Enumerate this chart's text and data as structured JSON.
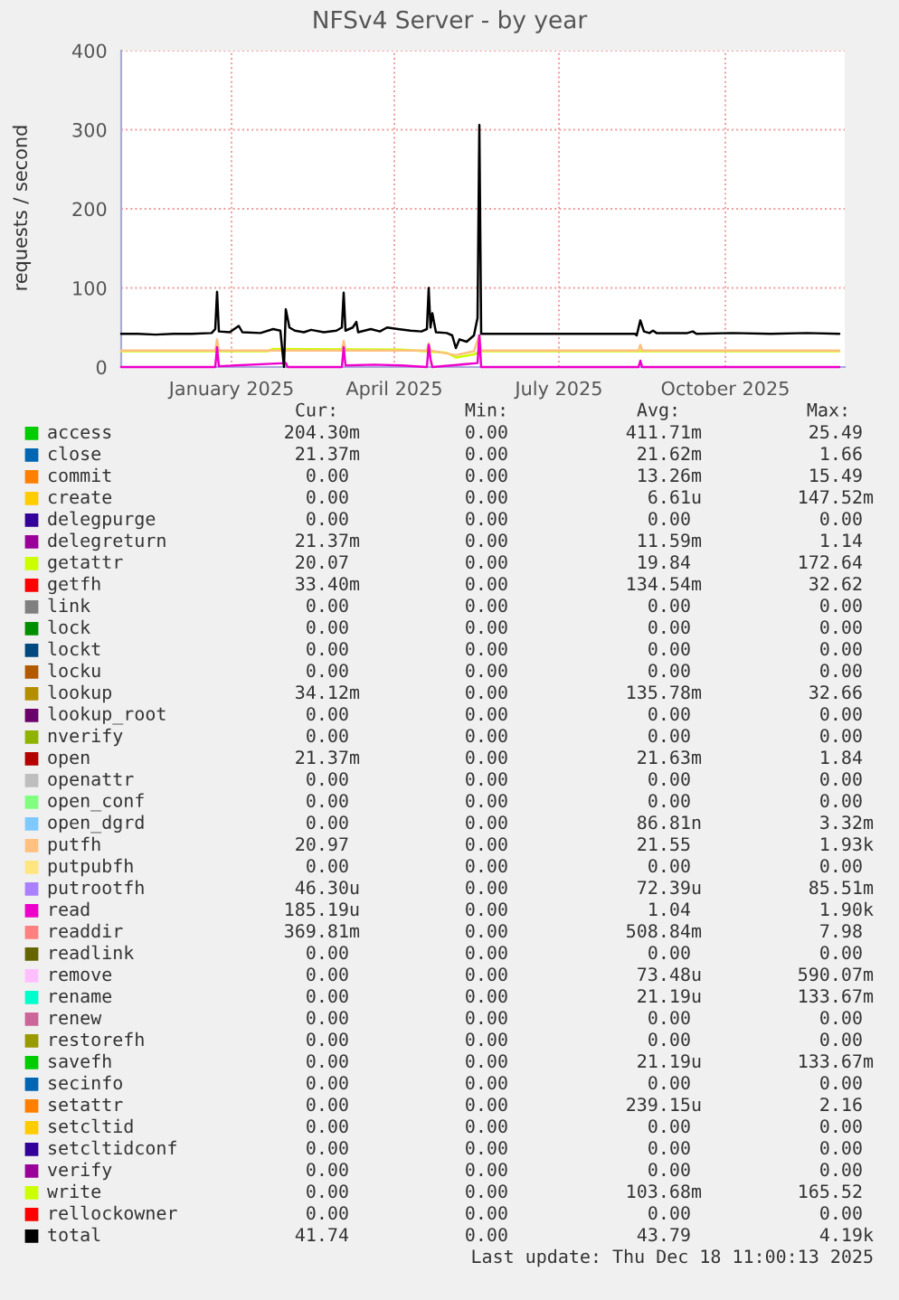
{
  "chart_data": {
    "type": "line",
    "title": "NFSv4 Server - by year",
    "ylabel": "requests / second",
    "xlim": [
      "2024-11-16",
      "2025-12-21"
    ],
    "xticks": [
      {
        "value": "2025-01-16",
        "label": "January 2025"
      },
      {
        "value": "2025-04-16",
        "label": "April 2025"
      },
      {
        "value": "2025-07-16",
        "label": "July 2025"
      },
      {
        "value": "2025-10-16",
        "label": "October 2025"
      }
    ],
    "ylim": [
      0,
      400
    ],
    "yticks": [
      0,
      100,
      200,
      300,
      400
    ],
    "grid": true,
    "legend": "bottom",
    "series": [
      {
        "name": "access",
        "color": "#00cc00"
      },
      {
        "name": "close",
        "color": "#0066b3"
      },
      {
        "name": "commit",
        "color": "#ff8000"
      },
      {
        "name": "create",
        "color": "#ffcc00"
      },
      {
        "name": "delegpurge",
        "color": "#330099"
      },
      {
        "name": "delegreturn",
        "color": "#990099"
      },
      {
        "name": "getattr",
        "color": "#ccff00",
        "x": [
          "2024-11-16",
          "2025-02-05",
          "2025-02-08",
          "2025-04-20",
          "2025-05-15",
          "2025-05-20",
          "2025-05-30",
          "2025-06-03",
          "2025-12-18"
        ],
        "values": [
          20,
          20,
          23,
          22,
          18,
          12,
          16,
          20,
          20
        ]
      },
      {
        "name": "getfh",
        "color": "#ff0000"
      },
      {
        "name": "link",
        "color": "#808080"
      },
      {
        "name": "lock",
        "color": "#008f00"
      },
      {
        "name": "lockt",
        "color": "#00487d"
      },
      {
        "name": "locku",
        "color": "#b35a00"
      },
      {
        "name": "lookup",
        "color": "#b38f00"
      },
      {
        "name": "lookup_root",
        "color": "#6b006b"
      },
      {
        "name": "nverify",
        "color": "#8fb300"
      },
      {
        "name": "open",
        "color": "#b30000"
      },
      {
        "name": "openattr",
        "color": "#bebebe"
      },
      {
        "name": "open_conf",
        "color": "#80ff80"
      },
      {
        "name": "open_dgrd",
        "color": "#80c9ff"
      },
      {
        "name": "putfh",
        "color": "#ffc080",
        "x": [
          "2024-11-16",
          "2025-01-07",
          "2025-01-08",
          "2025-01-09",
          "2025-03-18",
          "2025-03-19",
          "2025-03-20",
          "2025-05-04",
          "2025-05-05",
          "2025-05-06",
          "2025-05-20",
          "2025-05-30",
          "2025-06-02",
          "2025-06-03",
          "2025-08-29",
          "2025-08-30",
          "2025-08-31",
          "2025-12-18"
        ],
        "values": [
          21,
          21,
          35,
          21,
          21,
          33,
          21,
          21,
          30,
          21,
          15,
          20,
          40,
          21,
          21,
          28,
          21,
          21
        ]
      },
      {
        "name": "putpubfh",
        "color": "#ffe680"
      },
      {
        "name": "putrootfh",
        "color": "#aa80ff"
      },
      {
        "name": "read",
        "color": "#ee00cc",
        "x": [
          "2024-11-16",
          "2025-01-07",
          "2025-01-08",
          "2025-01-09",
          "2025-02-15",
          "2025-02-16",
          "2025-03-18",
          "2025-03-19",
          "2025-03-20",
          "2025-04-05",
          "2025-04-20",
          "2025-05-04",
          "2025-05-05",
          "2025-05-06",
          "2025-05-07",
          "2025-06-01",
          "2025-06-02",
          "2025-06-03",
          "2025-08-29",
          "2025-08-30",
          "2025-08-31",
          "2025-12-18"
        ],
        "values": [
          0,
          0,
          25,
          1,
          5,
          0,
          0,
          25,
          2,
          3,
          2,
          0,
          28,
          10,
          0,
          5,
          40,
          0,
          0,
          8,
          0,
          0
        ]
      },
      {
        "name": "readdir",
        "color": "#ff8080"
      },
      {
        "name": "readlink",
        "color": "#666600"
      },
      {
        "name": "remove",
        "color": "#ffbfff"
      },
      {
        "name": "rename",
        "color": "#00ffcc"
      },
      {
        "name": "renew",
        "color": "#cc6699"
      },
      {
        "name": "restorefh",
        "color": "#999900"
      },
      {
        "name": "savefh",
        "color": "#00cc00"
      },
      {
        "name": "secinfo",
        "color": "#0066b3"
      },
      {
        "name": "setattr",
        "color": "#ff8000"
      },
      {
        "name": "setcltid",
        "color": "#ffcc00"
      },
      {
        "name": "setcltidconf",
        "color": "#330099"
      },
      {
        "name": "verify",
        "color": "#990099"
      },
      {
        "name": "write",
        "color": "#ccff00"
      },
      {
        "name": "rellockowner",
        "color": "#ff0000"
      },
      {
        "name": "total",
        "color": "#000000",
        "x": [
          "2024-11-16",
          "2024-11-25",
          "2024-12-05",
          "2024-12-15",
          "2024-12-25",
          "2025-01-05",
          "2025-01-07",
          "2025-01-08",
          "2025-01-09",
          "2025-01-15",
          "2025-01-20",
          "2025-01-22",
          "2025-02-01",
          "2025-02-08",
          "2025-02-12",
          "2025-02-14",
          "2025-02-15",
          "2025-02-17",
          "2025-02-20",
          "2025-02-25",
          "2025-03-01",
          "2025-03-08",
          "2025-03-15",
          "2025-03-18",
          "2025-03-19",
          "2025-03-20",
          "2025-03-24",
          "2025-03-26",
          "2025-03-27",
          "2025-04-03",
          "2025-04-08",
          "2025-04-12",
          "2025-04-18",
          "2025-04-25",
          "2025-05-01",
          "2025-05-04",
          "2025-05-05",
          "2025-05-06",
          "2025-05-07",
          "2025-05-09",
          "2025-05-15",
          "2025-05-18",
          "2025-05-20",
          "2025-05-22",
          "2025-05-26",
          "2025-05-30",
          "2025-06-01",
          "2025-06-02",
          "2025-06-03",
          "2025-06-15",
          "2025-07-15",
          "2025-08-15",
          "2025-08-27",
          "2025-08-28",
          "2025-08-30",
          "2025-09-01",
          "2025-09-04",
          "2025-09-06",
          "2025-09-08",
          "2025-09-25",
          "2025-09-28",
          "2025-09-30",
          "2025-10-20",
          "2025-11-10",
          "2025-11-30",
          "2025-12-18"
        ],
        "values": [
          42,
          42,
          41,
          42,
          42,
          43,
          48,
          95,
          45,
          44,
          52,
          44,
          43,
          48,
          46,
          0,
          73,
          50,
          46,
          44,
          47,
          44,
          46,
          50,
          94,
          46,
          50,
          57,
          44,
          48,
          45,
          50,
          48,
          46,
          45,
          48,
          100,
          50,
          68,
          44,
          43,
          40,
          24,
          35,
          32,
          40,
          62,
          306,
          42,
          42,
          42,
          42,
          42,
          40,
          59,
          45,
          43,
          46,
          43,
          43,
          45,
          42,
          43,
          42,
          43,
          42
        ]
      }
    ],
    "annotations": [
      "Cur:",
      "Min:",
      "Avg:",
      "Max:",
      "204.30m",
      "0.00",
      "411.71m",
      "25.49",
      "21.37m",
      "0.00",
      "21.62m",
      "1.66",
      "0.00",
      "0.00",
      "13.26m",
      "15.49",
      "0.00",
      "0.00",
      "6.61u",
      "147.52m",
      "0.00",
      "0.00",
      "0.00",
      "0.00",
      "21.37m",
      "0.00",
      "11.59m",
      "1.14",
      "20.07",
      "0.00",
      "19.84",
      "172.64",
      "33.40m",
      "0.00",
      "134.54m",
      "32.62",
      "0.00",
      "0.00",
      "0.00",
      "0.00",
      "0.00",
      "0.00",
      "0.00",
      "0.00",
      "0.00",
      "0.00",
      "0.00",
      "0.00",
      "0.00",
      "0.00",
      "0.00",
      "0.00",
      "34.12m",
      "0.00",
      "135.78m",
      "32.66",
      "0.00",
      "0.00",
      "0.00",
      "0.00",
      "0.00",
      "0.00",
      "0.00",
      "0.00",
      "21.37m",
      "0.00",
      "21.63m",
      "1.84",
      "0.00",
      "0.00",
      "0.00",
      "0.00",
      "0.00",
      "0.00",
      "0.00",
      "0.00",
      "0.00",
      "0.00",
      "86.81n",
      "3.32m",
      "20.97",
      "0.00",
      "21.55",
      "1.93k",
      "0.00",
      "0.00",
      "0.00",
      "0.00",
      "46.30u",
      "0.00",
      "72.39u",
      "85.51m",
      "185.19u",
      "0.00",
      "1.04",
      "1.90k",
      "369.81m",
      "0.00",
      "508.84m",
      "7.98",
      "0.00",
      "0.00",
      "0.00",
      "0.00",
      "0.00",
      "0.00",
      "73.48u",
      "590.07m",
      "0.00",
      "0.00",
      "21.19u",
      "133.67m",
      "0.00",
      "0.00",
      "0.00",
      "0.00",
      "0.00",
      "0.00",
      "0.00",
      "0.00",
      "0.00",
      "0.00",
      "21.19u",
      "133.67m",
      "0.00",
      "0.00",
      "0.00",
      "0.00",
      "0.00",
      "0.00",
      "239.15u",
      "2.16",
      "0.00",
      "0.00",
      "0.00",
      "0.00",
      "0.00",
      "0.00",
      "0.00",
      "0.00",
      "0.00",
      "0.00",
      "0.00",
      "0.00",
      "0.00",
      "0.00",
      "103.68m",
      "165.52",
      "0.00",
      "0.00",
      "0.00",
      "0.00",
      "41.74",
      "0.00",
      "43.79",
      "4.19k",
      "Last update: Thu Dec 18 11:00:13 2025"
    ]
  }
}
